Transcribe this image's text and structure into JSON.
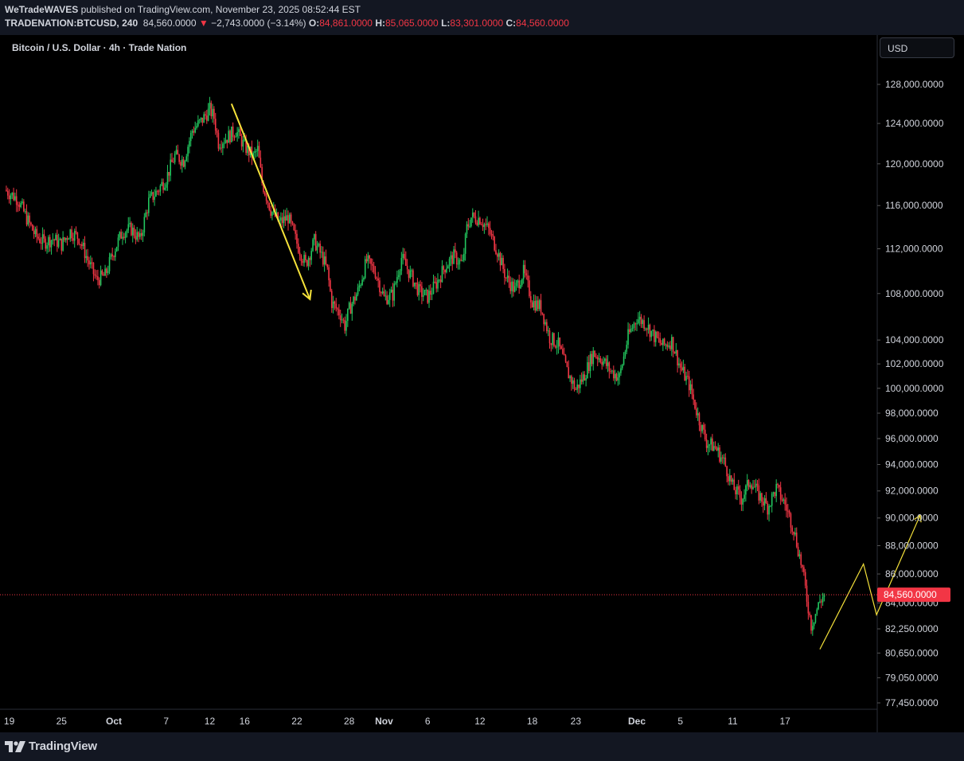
{
  "header": {
    "publisher": "WeTradeWAVES",
    "published_text": " published on TradingView.com, November 23, 2025 08:52:44 EST",
    "symbol": "TRADENATION:BTCUSD, 240",
    "last": "84,560.0000",
    "change": "−2,743.0000 (−3.14%)",
    "o_label": "O:",
    "o_value": "84,861.0000",
    "h_label": "H:",
    "h_value": "85,065.0000",
    "l_label": "L:",
    "l_value": "83,301.0000",
    "c_label": "C:",
    "c_value": "84,560.0000"
  },
  "chart_title": "Bitcoin / U.S. Dollar · 4h · Trade Nation",
  "currency_button": "USD",
  "footer": {
    "brand": "TradingView"
  },
  "colors": {
    "up": "#22c55e",
    "down": "#f23645",
    "drawing": "#f5e23a",
    "axis_text": "#d1d4dc",
    "last_price_bg": "#f23645"
  },
  "chart_data": {
    "type": "candlestick",
    "title": "Bitcoin / U.S. Dollar · 4h · Trade Nation",
    "xlabel": "",
    "ylabel": "",
    "y_scale": "log",
    "ylim": [
      76000,
      131000
    ],
    "last_price": 84560,
    "last_price_label": "84,560.0000",
    "y_ticks": [
      {
        "value": 128000,
        "label": "128,000.0000"
      },
      {
        "value": 124000,
        "label": "124,000.0000"
      },
      {
        "value": 120000,
        "label": "120,000.0000"
      },
      {
        "value": 116000,
        "label": "116,000.0000"
      },
      {
        "value": 112000,
        "label": "112,000.0000"
      },
      {
        "value": 108000,
        "label": "108,000.0000"
      },
      {
        "value": 104000,
        "label": "104,000.0000"
      },
      {
        "value": 102000,
        "label": "102,000.0000"
      },
      {
        "value": 100000,
        "label": "100,000.0000"
      },
      {
        "value": 98000,
        "label": "98,000.0000"
      },
      {
        "value": 96000,
        "label": "96,000.0000"
      },
      {
        "value": 94000,
        "label": "94,000.0000"
      },
      {
        "value": 92000,
        "label": "92,000.0000"
      },
      {
        "value": 90000,
        "label": "90,000.0000"
      },
      {
        "value": 88000,
        "label": "88,000.0000"
      },
      {
        "value": 86000,
        "label": "86,000.0000"
      },
      {
        "value": 84000,
        "label": "84,000.0000"
      },
      {
        "value": 82250,
        "label": "82,250.0000"
      },
      {
        "value": 80650,
        "label": "80,650.0000"
      },
      {
        "value": 79050,
        "label": "79,050.0000"
      },
      {
        "value": 77450,
        "label": "77,450.0000"
      }
    ],
    "x_ticks": [
      {
        "day": -1,
        "label": "19",
        "bold": false
      },
      {
        "day": 5,
        "label": "25",
        "bold": false
      },
      {
        "day": 11,
        "label": "Oct",
        "bold": true
      },
      {
        "day": 17,
        "label": "7",
        "bold": false
      },
      {
        "day": 22,
        "label": "12",
        "bold": false
      },
      {
        "day": 26,
        "label": "16",
        "bold": false
      },
      {
        "day": 32,
        "label": "22",
        "bold": false
      },
      {
        "day": 38,
        "label": "28",
        "bold": false
      },
      {
        "day": 42,
        "label": "Nov",
        "bold": true
      },
      {
        "day": 47,
        "label": "6",
        "bold": false
      },
      {
        "day": 53,
        "label": "12",
        "bold": false
      },
      {
        "day": 59,
        "label": "18",
        "bold": false
      },
      {
        "day": 64,
        "label": "23",
        "bold": false
      },
      {
        "day": 71,
        "label": "Dec",
        "bold": true
      },
      {
        "day": 76,
        "label": "5",
        "bold": false
      },
      {
        "day": 82,
        "label": "11",
        "bold": false
      },
      {
        "day": 88,
        "label": "17",
        "bold": false
      }
    ],
    "price_path": [
      [
        -1.5,
        117500
      ],
      [
        0,
        116600
      ],
      [
        1,
        114800
      ],
      [
        2,
        113200
      ],
      [
        3,
        112600
      ],
      [
        4,
        112900
      ],
      [
        5,
        112400
      ],
      [
        6,
        113600
      ],
      [
        7,
        113000
      ],
      [
        8,
        111000
      ],
      [
        9,
        109200
      ],
      [
        10,
        109600
      ],
      [
        11,
        111800
      ],
      [
        12,
        113600
      ],
      [
        13,
        113800
      ],
      [
        14,
        112800
      ],
      [
        15,
        116400
      ],
      [
        16,
        117400
      ],
      [
        17,
        118600
      ],
      [
        18,
        120800
      ],
      [
        19,
        120300
      ],
      [
        20,
        123300
      ],
      [
        21,
        124200
      ],
      [
        22,
        125400
      ],
      [
        22.5,
        124600
      ],
      [
        23,
        122100
      ],
      [
        24,
        122600
      ],
      [
        25,
        123300
      ],
      [
        26,
        121700
      ],
      [
        27,
        120700
      ],
      [
        27.5,
        121400
      ],
      [
        28,
        118200
      ],
      [
        29,
        115600
      ],
      [
        30,
        114400
      ],
      [
        31,
        114900
      ],
      [
        32,
        112500
      ],
      [
        33,
        110600
      ],
      [
        34,
        112700
      ],
      [
        35,
        111100
      ],
      [
        35.5,
        110000
      ],
      [
        36,
        107200
      ],
      [
        37,
        106200
      ],
      [
        37.5,
        105200
      ],
      [
        38,
        106600
      ],
      [
        39,
        108200
      ],
      [
        40,
        110900
      ],
      [
        41,
        109900
      ],
      [
        42,
        107600
      ],
      [
        43,
        107900
      ],
      [
        44,
        111200
      ],
      [
        45,
        109700
      ],
      [
        46,
        108200
      ],
      [
        47,
        107700
      ],
      [
        48,
        108900
      ],
      [
        49,
        110400
      ],
      [
        50,
        111300
      ],
      [
        51,
        110600
      ],
      [
        51.5,
        113900
      ],
      [
        52,
        114900
      ],
      [
        53,
        114800
      ],
      [
        54,
        113700
      ],
      [
        55,
        111800
      ],
      [
        56,
        109400
      ],
      [
        57,
        108300
      ],
      [
        58,
        109900
      ],
      [
        59,
        107300
      ],
      [
        60,
        106800
      ],
      [
        61,
        104200
      ],
      [
        62,
        103600
      ],
      [
        63,
        101400
      ],
      [
        64,
        99900
      ],
      [
        65,
        101100
      ],
      [
        66,
        102900
      ],
      [
        67,
        102400
      ],
      [
        68,
        101400
      ],
      [
        69,
        100900
      ],
      [
        70,
        104300
      ],
      [
        71,
        105900
      ],
      [
        72,
        105400
      ],
      [
        73,
        104300
      ],
      [
        74,
        103500
      ],
      [
        75,
        103900
      ],
      [
        76,
        101700
      ],
      [
        77,
        100300
      ],
      [
        78,
        97800
      ],
      [
        79,
        95700
      ],
      [
        80,
        95300
      ],
      [
        81,
        94200
      ],
      [
        82,
        92300
      ],
      [
        83,
        91400
      ],
      [
        84,
        92800
      ],
      [
        85,
        91700
      ],
      [
        86,
        90800
      ],
      [
        87,
        92200
      ],
      [
        88,
        91000
      ],
      [
        89,
        89200
      ],
      [
        90,
        86300
      ],
      [
        90.5,
        84300
      ],
      [
        91,
        82500
      ],
      [
        92,
        84100
      ],
      [
        92.5,
        84560
      ]
    ],
    "drawings": [
      {
        "type": "arrow",
        "points": [
          [
            24.5,
            126000
          ],
          [
            33.5,
            107500
          ]
        ]
      },
      {
        "type": "polyline",
        "points": [
          [
            92,
            80900
          ],
          [
            97,
            86700
          ],
          [
            98.5,
            83200
          ],
          [
            103.5,
            90200
          ]
        ]
      }
    ]
  }
}
